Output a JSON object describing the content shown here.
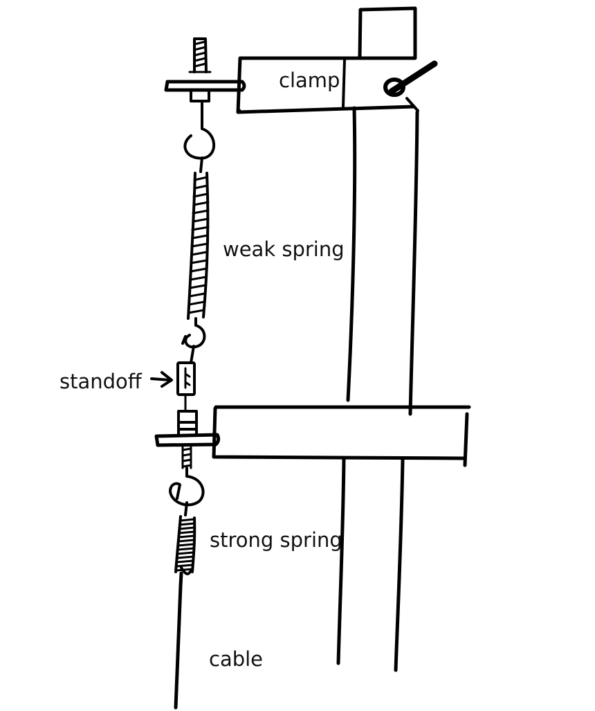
{
  "labels": {
    "clamp": "clamp",
    "weak_spring": "weak spring",
    "standoff": "standoff",
    "strong_spring": "strong spring",
    "cable": "cable"
  },
  "colors": {
    "ink": "#000000",
    "background": "#ffffff"
  }
}
